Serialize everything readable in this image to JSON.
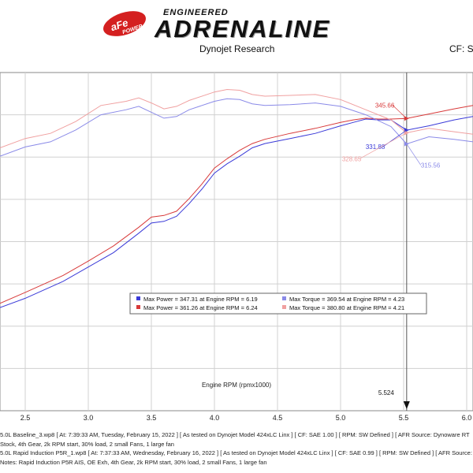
{
  "header": {
    "brand_logo_text": "aFe POWER",
    "brand_small": "ENGINEERED",
    "brand_big": "ADRENALINE",
    "subtitle": "Dynojet Research",
    "cf_label": "CF: SA"
  },
  "colors": {
    "baseline_power": "#3a3ad8",
    "baseline_torque": "#8a8ae8",
    "induction_power": "#d83a3a",
    "induction_torque": "#f0a0a0",
    "cursor": "#555555",
    "grid": "#d0d0d0"
  },
  "chart_data": {
    "type": "line",
    "title": "",
    "xlabel": "Engine RPM (rpmx1000)",
    "ylabel": "",
    "xlim": [
      2.3,
      6.05
    ],
    "ylim": [
      0,
      400
    ],
    "x_ticks": [
      "2.5",
      "3.0",
      "3.5",
      "4.0",
      "4.5",
      "5.0",
      "5.5",
      "6.0"
    ],
    "grid": true,
    "cursor_x": 5.524,
    "cursor_label": "5.524",
    "series": [
      {
        "key": "baseline_power",
        "points": [
          [
            2.3,
            122
          ],
          [
            2.5,
            133
          ],
          [
            2.8,
            153
          ],
          [
            3.0,
            170
          ],
          [
            3.2,
            187
          ],
          [
            3.4,
            210
          ],
          [
            3.5,
            222
          ],
          [
            3.6,
            224
          ],
          [
            3.7,
            230
          ],
          [
            3.8,
            245
          ],
          [
            3.9,
            262
          ],
          [
            4.0,
            281
          ],
          [
            4.1,
            292
          ],
          [
            4.2,
            301
          ],
          [
            4.3,
            311
          ],
          [
            4.4,
            316
          ],
          [
            4.6,
            322
          ],
          [
            4.8,
            328
          ],
          [
            5.0,
            337
          ],
          [
            5.1,
            341
          ],
          [
            5.2,
            345
          ],
          [
            5.3,
            344
          ],
          [
            5.4,
            344
          ],
          [
            5.524,
            331.88
          ],
          [
            5.7,
            337
          ],
          [
            5.9,
            344
          ],
          [
            6.05,
            348
          ]
        ]
      },
      {
        "key": "induction_power",
        "points": [
          [
            2.3,
            127
          ],
          [
            2.5,
            140
          ],
          [
            2.8,
            160
          ],
          [
            3.0,
            177
          ],
          [
            3.2,
            195
          ],
          [
            3.4,
            217
          ],
          [
            3.5,
            229
          ],
          [
            3.6,
            231
          ],
          [
            3.7,
            236
          ],
          [
            3.8,
            251
          ],
          [
            3.9,
            268
          ],
          [
            4.0,
            287
          ],
          [
            4.1,
            298
          ],
          [
            4.2,
            308
          ],
          [
            4.3,
            316
          ],
          [
            4.4,
            321
          ],
          [
            4.6,
            328
          ],
          [
            4.8,
            334
          ],
          [
            5.0,
            341
          ],
          [
            5.1,
            344
          ],
          [
            5.2,
            346
          ],
          [
            5.3,
            345
          ],
          [
            5.4,
            345
          ],
          [
            5.524,
            345.66
          ],
          [
            5.7,
            351
          ],
          [
            5.9,
            357
          ],
          [
            6.05,
            361
          ]
        ]
      },
      {
        "key": "baseline_torque",
        "points": [
          [
            2.3,
            301
          ],
          [
            2.5,
            312
          ],
          [
            2.7,
            318
          ],
          [
            2.9,
            332
          ],
          [
            3.1,
            350
          ],
          [
            3.3,
            356
          ],
          [
            3.4,
            360
          ],
          [
            3.5,
            353
          ],
          [
            3.6,
            346
          ],
          [
            3.7,
            348
          ],
          [
            3.8,
            356
          ],
          [
            4.0,
            366
          ],
          [
            4.1,
            369
          ],
          [
            4.2,
            368
          ],
          [
            4.3,
            363
          ],
          [
            4.4,
            361
          ],
          [
            4.6,
            362
          ],
          [
            4.8,
            364
          ],
          [
            5.0,
            360
          ],
          [
            5.2,
            350
          ],
          [
            5.4,
            336
          ],
          [
            5.524,
            315.56
          ],
          [
            5.7,
            324
          ],
          [
            5.9,
            321
          ],
          [
            6.05,
            318
          ]
        ]
      },
      {
        "key": "induction_torque",
        "points": [
          [
            2.3,
            311
          ],
          [
            2.5,
            322
          ],
          [
            2.7,
            328
          ],
          [
            2.9,
            342
          ],
          [
            3.1,
            361
          ],
          [
            3.3,
            366
          ],
          [
            3.4,
            370
          ],
          [
            3.5,
            364
          ],
          [
            3.6,
            357
          ],
          [
            3.7,
            360
          ],
          [
            3.8,
            367
          ],
          [
            4.0,
            377
          ],
          [
            4.1,
            380
          ],
          [
            4.2,
            379
          ],
          [
            4.3,
            374
          ],
          [
            4.4,
            372
          ],
          [
            4.6,
            373
          ],
          [
            4.8,
            374
          ],
          [
            5.0,
            368
          ],
          [
            5.2,
            356
          ],
          [
            5.4,
            344
          ],
          [
            5.524,
            328.65
          ],
          [
            5.7,
            334
          ],
          [
            5.9,
            330
          ],
          [
            6.05,
            327
          ]
        ]
      }
    ],
    "annotations": [
      {
        "label": "345.66",
        "key": "induction_power",
        "x": 5.524,
        "y": 345.66
      },
      {
        "label": "331.88",
        "key": "baseline_power",
        "x": 5.524,
        "y": 331.88
      },
      {
        "label": "328.65",
        "key": "induction_torque",
        "x": 5.524,
        "y": 328.65
      },
      {
        "label": "315.56",
        "key": "baseline_torque",
        "x": 5.524,
        "y": 315.56
      }
    ],
    "legend": {
      "placement": "center",
      "entries": [
        {
          "key": "baseline_power",
          "text": "Max Power = 347.31 at Engine RPM = 6.19"
        },
        {
          "key": "baseline_torque",
          "text": "Max Torque = 369.54 at Engine RPM = 4.23"
        },
        {
          "key": "induction_power",
          "text": "Max Power = 361.26 at Engine RPM = 6.24"
        },
        {
          "key": "induction_torque",
          "text": "Max Torque = 380.80 at Engine RPM = 4.21"
        }
      ]
    }
  },
  "footer": {
    "lines": [
      "5.0L Baseline_3.wp8 [ At: 7:39:33 AM, Tuesday, February 15, 2022 ] [ As tested on Dynojet Model 424xLC Linx ] [ CF: SAE 1.00 ] [ RPM: SW Defined ] [ AFR Source: Dynoware RT",
      "Stock, 4th Gear, 2k RPM start, 30% load, 2 small Fans, 1 large fan",
      "5.0L Rapid Induction P5R_1.wp8 [ At: 7:37:33 AM, Wednesday, February 16, 2022 ] [ As tested on Dynojet Model 424xLC Linx ] [ CF: SAE 0.99 ] [ RPM: SW Defined ] [ AFR Source: Dynoware",
      "Notes: Rapid Induction P5R AIS, OE Exh, 4th Gear, 2k RPM start, 30% load, 2 small Fans, 1 large fan"
    ]
  }
}
